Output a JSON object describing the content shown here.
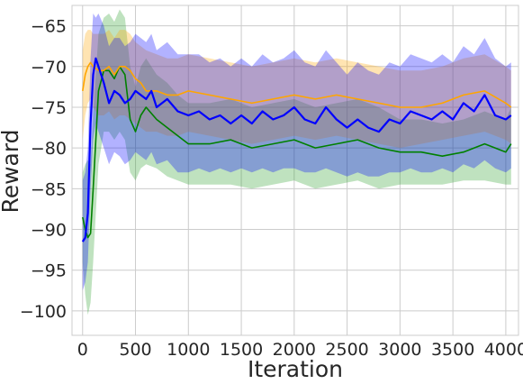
{
  "chart_data": {
    "type": "line",
    "title": "",
    "xlabel": "Iteration",
    "ylabel": "Reward",
    "xlim": [
      -100,
      4120
    ],
    "ylim": [
      -103,
      -62.5
    ],
    "x_ticks": [
      0,
      500,
      1000,
      1500,
      2000,
      2500,
      3000,
      3500,
      4000
    ],
    "y_ticks": [
      -65,
      -70,
      -75,
      -80,
      -85,
      -90,
      -95,
      -100
    ],
    "x_tick_labels": [
      "0",
      "500",
      "1000",
      "1500",
      "2000",
      "2500",
      "3000",
      "3500",
      "4000"
    ],
    "y_tick_labels": [
      "−65",
      "−70",
      "−75",
      "−80",
      "−85",
      "−90",
      "−95",
      "−100"
    ],
    "grid": true,
    "legend": "none",
    "series": [
      {
        "color": "#008000",
        "band_color": "#2ca02c",
        "x": [
          0,
          25,
          50,
          75,
          100,
          150,
          200,
          250,
          300,
          350,
          400,
          450,
          500,
          550,
          600,
          700,
          800,
          900,
          1000,
          1200,
          1400,
          1600,
          1800,
          2000,
          2200,
          2400,
          2600,
          2800,
          3000,
          3200,
          3400,
          3600,
          3800,
          4000,
          4050
        ],
        "y": [
          -88.5,
          -90,
          -91,
          -90.5,
          -85,
          -73,
          -70.5,
          -70.5,
          -71.5,
          -70,
          -71,
          -76.5,
          -78,
          -76,
          -75,
          -76.5,
          -77.5,
          -78.5,
          -79.5,
          -79.5,
          -79,
          -80,
          -79.5,
          -79,
          -80,
          -79.5,
          -79,
          -80,
          -80.5,
          -80.5,
          -81,
          -80.5,
          -79.5,
          -80.5,
          -79.5
        ],
        "lower": [
          -94,
          -98,
          -100.5,
          -99,
          -94,
          -82,
          -78,
          -78,
          -79,
          -78,
          -79,
          -83,
          -84,
          -82.5,
          -82,
          -82.5,
          -83.5,
          -84,
          -84.5,
          -84.5,
          -84.5,
          -85,
          -84.5,
          -84,
          -85,
          -84.5,
          -84,
          -85,
          -84.5,
          -84.5,
          -84.5,
          -84,
          -84,
          -84.5,
          -84.5
        ],
        "upper": [
          -83,
          -82,
          -81.5,
          -82,
          -76,
          -66,
          -64,
          -63.5,
          -64.5,
          -63,
          -64,
          -70,
          -72.5,
          -70,
          -69,
          -71,
          -72,
          -73.5,
          -74.5,
          -74.5,
          -74,
          -75,
          -74.5,
          -74,
          -75,
          -74.5,
          -74,
          -75,
          -76.5,
          -76.5,
          -77,
          -76.5,
          -75.5,
          -76.5,
          -75
        ]
      },
      {
        "color": "#ffa500",
        "band_color": "#ffa500",
        "x": [
          0,
          25,
          50,
          75,
          100,
          150,
          200,
          250,
          300,
          350,
          400,
          450,
          500,
          550,
          600,
          700,
          800,
          900,
          1000,
          1200,
          1400,
          1600,
          1800,
          2000,
          2200,
          2400,
          2600,
          2800,
          3000,
          3200,
          3400,
          3600,
          3800,
          4000,
          4050
        ],
        "y": [
          -73,
          -71,
          -70,
          -69.5,
          -70,
          -70.5,
          -70.5,
          -70,
          -71,
          -70,
          -70,
          -70.5,
          -71.5,
          -72,
          -73,
          -73,
          -73.5,
          -73.5,
          -73,
          -73.5,
          -74,
          -74.5,
          -74,
          -73.5,
          -74,
          -73.5,
          -74,
          -74.5,
          -75,
          -75,
          -74.5,
          -73.5,
          -73,
          -74.5,
          -75
        ],
        "lower": [
          -79,
          -76,
          -74.5,
          -74,
          -75,
          -76,
          -76,
          -75.5,
          -76.5,
          -76,
          -76,
          -76.5,
          -77,
          -77.5,
          -78,
          -78,
          -78.5,
          -78.5,
          -78,
          -78.5,
          -79,
          -79.5,
          -79,
          -78.5,
          -79,
          -78.5,
          -79,
          -79.5,
          -80,
          -79.5,
          -79,
          -78.5,
          -78,
          -79,
          -79.5
        ],
        "upper": [
          -68,
          -66,
          -65.5,
          -65.5,
          -66,
          -66,
          -66,
          -65.5,
          -66.5,
          -65.5,
          -65.5,
          -66,
          -67,
          -67.5,
          -68,
          -68.5,
          -69,
          -69,
          -68.5,
          -69,
          -69.5,
          -70,
          -69.5,
          -69,
          -69.5,
          -69,
          -69.5,
          -70,
          -70.5,
          -70.5,
          -70,
          -69,
          -68.5,
          -70,
          -70.5
        ]
      },
      {
        "color": "#0000ff",
        "band_color": "#0000ff",
        "x": [
          0,
          25,
          50,
          75,
          100,
          125,
          150,
          200,
          250,
          300,
          350,
          400,
          450,
          500,
          550,
          600,
          650,
          700,
          800,
          900,
          1000,
          1100,
          1200,
          1300,
          1400,
          1500,
          1600,
          1700,
          1800,
          1900,
          2000,
          2100,
          2200,
          2300,
          2400,
          2500,
          2600,
          2700,
          2800,
          2900,
          3000,
          3100,
          3200,
          3300,
          3400,
          3500,
          3600,
          3700,
          3800,
          3900,
          4000,
          4050
        ],
        "y": [
          -91.5,
          -91,
          -88,
          -77,
          -71,
          -69,
          -70,
          -72,
          -74.5,
          -73,
          -73.5,
          -74.5,
          -74,
          -73,
          -73.5,
          -74,
          -73,
          -75,
          -74,
          -75.5,
          -76,
          -75.5,
          -76.5,
          -76,
          -77,
          -76,
          -77,
          -75.5,
          -76.5,
          -76,
          -75,
          -76.5,
          -77,
          -75,
          -76.5,
          -77.5,
          -76.5,
          -77.5,
          -78,
          -76.5,
          -77,
          -75.5,
          -76,
          -76.5,
          -75.5,
          -76.5,
          -74.5,
          -75.5,
          -73.5,
          -76,
          -76.5,
          -76
        ],
        "lower": [
          -97.5,
          -96.5,
          -94,
          -85,
          -79,
          -77,
          -78,
          -80,
          -82,
          -80.5,
          -81,
          -82,
          -81.5,
          -80.5,
          -81,
          -81.5,
          -80.5,
          -82,
          -81.5,
          -83,
          -83,
          -82.5,
          -83,
          -82.5,
          -83,
          -82.5,
          -83,
          -82.5,
          -83,
          -82.5,
          -82.5,
          -83,
          -83,
          -82.5,
          -83,
          -83.5,
          -83,
          -83.5,
          -83.5,
          -83,
          -83,
          -82.5,
          -83,
          -83,
          -82.5,
          -83,
          -82,
          -82.5,
          -81.5,
          -82.5,
          -83,
          -82.5
        ],
        "upper": [
          -84,
          -83,
          -80,
          -69,
          -63.5,
          -64,
          -63.5,
          -65,
          -67.5,
          -66.5,
          -66.5,
          -67.5,
          -67,
          -66,
          -66.5,
          -67,
          -66,
          -68,
          -67,
          -68.5,
          -68.5,
          -68.5,
          -69.5,
          -69,
          -70,
          -69,
          -70,
          -68.5,
          -69.5,
          -69,
          -68,
          -69.5,
          -70,
          -68,
          -69.5,
          -71,
          -69.5,
          -70.5,
          -71,
          -69.5,
          -70,
          -68.5,
          -69,
          -69.5,
          -68.5,
          -69.5,
          -67.5,
          -68.5,
          -66.5,
          -69,
          -70,
          -69.5
        ]
      }
    ]
  }
}
